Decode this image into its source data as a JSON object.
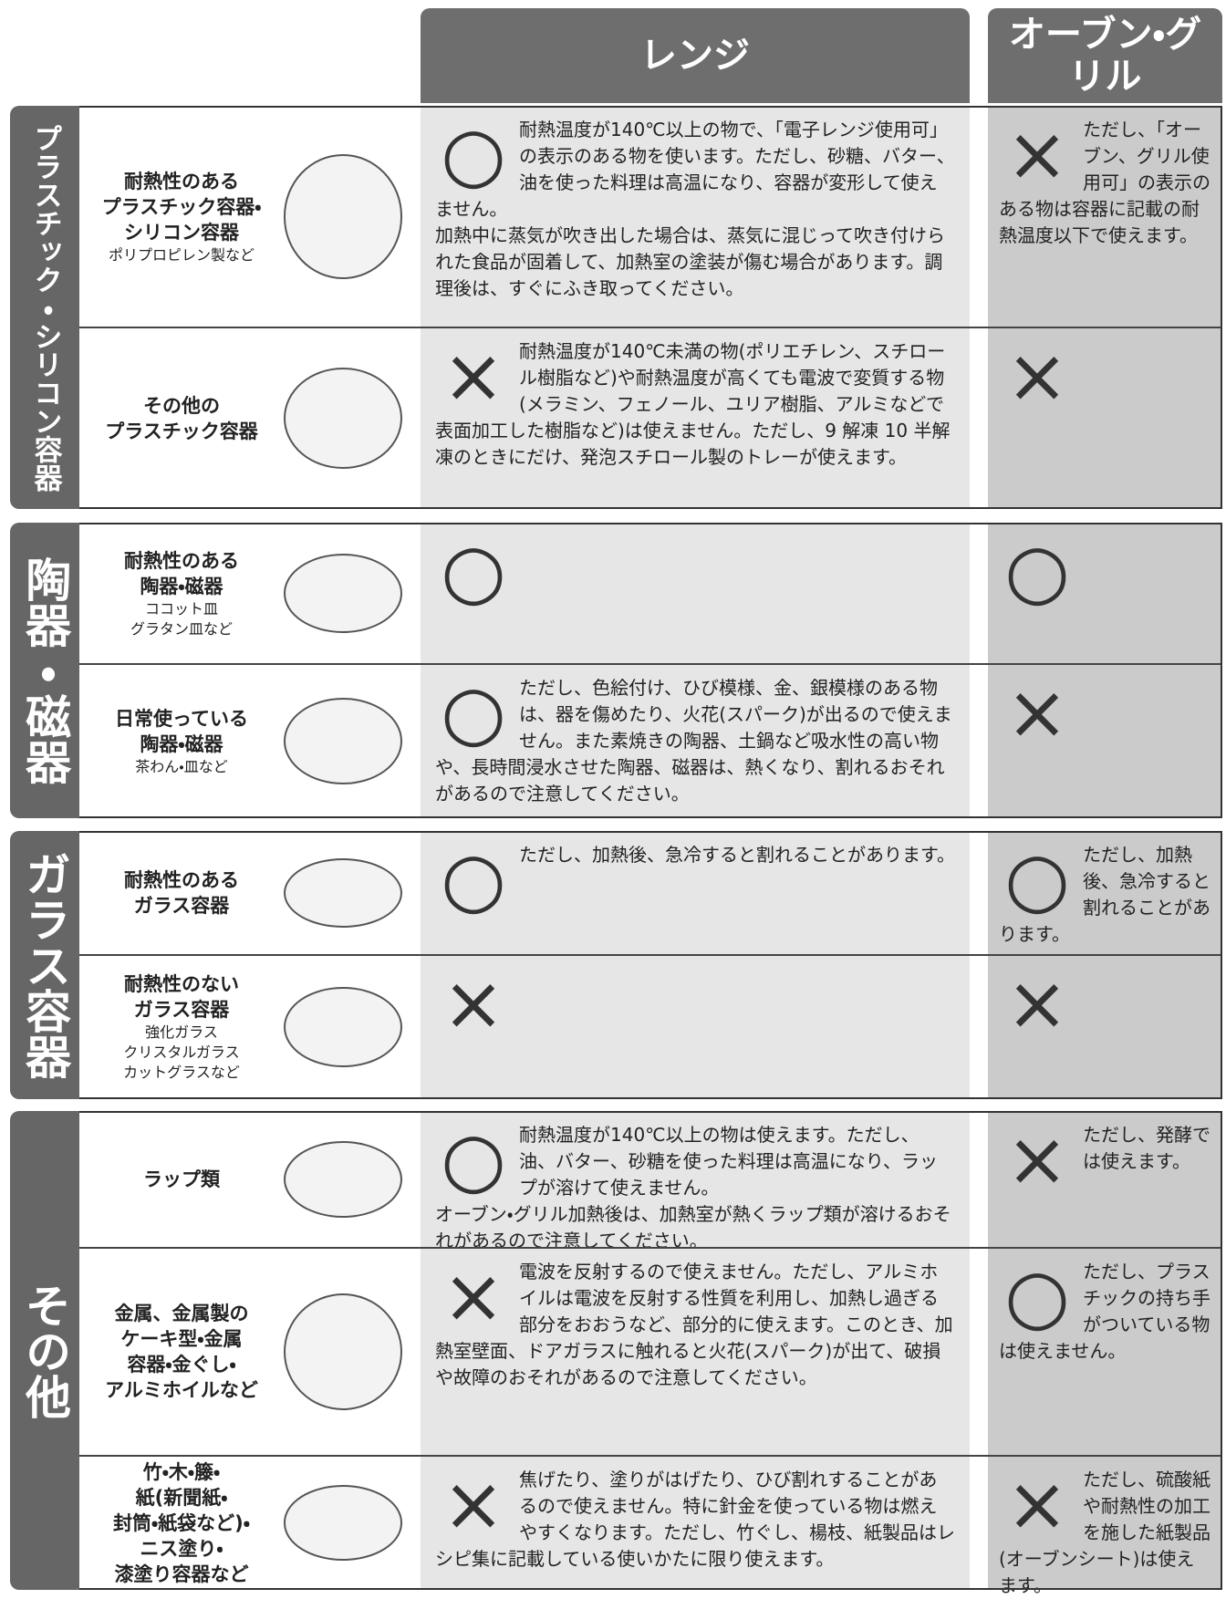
{
  "header": {
    "range": "レンジ",
    "oven": "オーブン・グリル"
  },
  "sections": [
    {
      "label": "プラスチック・シリコン容器",
      "rows": [
        {
          "item": [
            "耐熱性のある",
            "プラスチック容器・",
            "シリコン容器"
          ],
          "note": [
            "ポリプロピレン製など"
          ],
          "range": {
            "mark": "○",
            "text": [
              "耐熱温度が140℃以上の物で、「電子レンジ使用可」の表示のある物を使います。ただし、砂糖、バター、油を使った料理は高温になり、容器が変形して使えません。",
              "加熱中に蒸気が吹き出した場合は、蒸気に混じって吹き付けられた食品が固着して、加熱室の塗装が傷む場合があります。調理後は、すぐにふき取ってください。"
            ]
          },
          "oven": {
            "mark": "×",
            "text": [
              "ただし、「オーブン、グリル使用可」の表示のある物は容器に記載の耐熱温度以下で使えます。"
            ]
          }
        },
        {
          "item": [
            "その他の",
            "プラスチック容器"
          ],
          "note": [],
          "range": {
            "mark": "×",
            "text": [
              "耐熱温度が140℃未満の物(ポリエチレン、スチロール樹脂など)や耐熱温度が高くても電波で変質する物(メラミン、フェノール、ユリア樹脂、アルミなどで表面加工した樹脂など)は使えません。ただし、9 解凍 10 半解凍のときにだけ、発泡スチロール製のトレーが使えます。"
            ]
          },
          "oven": {
            "mark": "×",
            "text": []
          }
        }
      ]
    },
    {
      "label": "陶器・磁器",
      "rows": [
        {
          "item": [
            "耐熱性のある",
            "陶器・磁器"
          ],
          "note": [
            "ココット皿",
            "グラタン皿など"
          ],
          "range": {
            "mark": "○",
            "text": []
          },
          "oven": {
            "mark": "○",
            "text": []
          }
        },
        {
          "item": [
            "日常使っている",
            "陶器・磁器"
          ],
          "note": [
            "茶わん・皿など"
          ],
          "range": {
            "mark": "○",
            "text": [
              "ただし、色絵付け、ひび模様、金、銀模様のある物は、器を傷めたり、火花(スパーク)が出るので使えません。また素焼きの陶器、土鍋など吸水性の高い物や、長時間浸水させた陶器、磁器は、熱くなり、割れるおそれがあるので注意してください。"
            ]
          },
          "oven": {
            "mark": "×",
            "text": []
          }
        }
      ]
    },
    {
      "label": "ガラス容器",
      "rows": [
        {
          "item": [
            "耐熱性のある",
            "ガラス容器"
          ],
          "note": [],
          "range": {
            "mark": "○",
            "text": [
              "ただし、加熱後、急冷すると割れることがあります。"
            ]
          },
          "oven": {
            "mark": "○",
            "text": [
              "ただし、加熱後、急冷すると割れることがあります。"
            ]
          }
        },
        {
          "item": [
            "耐熱性のない",
            "ガラス容器"
          ],
          "note": [
            "強化ガラス",
            "クリスタルガラス",
            "カットグラスなど"
          ],
          "range": {
            "mark": "×",
            "text": []
          },
          "oven": {
            "mark": "×",
            "text": []
          }
        }
      ]
    },
    {
      "label": "その他",
      "rows": [
        {
          "item": [
            "ラップ類"
          ],
          "note": [],
          "range": {
            "mark": "○",
            "text": [
              "耐熱温度が140℃以上の物は使えます。ただし、油、バター、砂糖を使った料理は高温になり、ラップが溶けて使えません。",
              "オーブン・グリル加熱後は、加熱室が熱くラップ類が溶けるおそれがあるので注意してください。"
            ]
          },
          "oven": {
            "mark": "×",
            "text": [
              "ただし、発酵では使えます。"
            ]
          }
        },
        {
          "item": [
            "金属、金属製の",
            "ケーキ型・金属",
            "容器・金ぐし・",
            "アルミホイルなど"
          ],
          "note": [],
          "range": {
            "mark": "×",
            "text": [
              "電波を反射するので使えません。ただし、アルミホイルは電波を反射する性質を利用し、加熱し過ぎる部分をおおうなど、部分的に使えます。このとき、加熱室壁面、ドアガラスに触れると火花(スパーク)が出て、破損や故障のおそれがあるので注意してください。"
            ]
          },
          "oven": {
            "mark": "○",
            "text": [
              "ただし、プラスチックの持ち手がついている物は使えません。"
            ]
          }
        },
        {
          "item": [
            "竹・木・籐・",
            "紙(新聞紙・",
            "封筒・紙袋など)・",
            "ニス塗り・",
            "漆塗り容器など"
          ],
          "note": [],
          "range": {
            "mark": "×",
            "text": [
              "焦げたり、塗りがはげたり、ひび割れすることがあるので使えません。特に針金を使っている物は燃えやすくなります。ただし、竹ぐし、楊枝、紙製品はレシピ集に記載している使いかたに限り使えます。"
            ]
          },
          "oven": {
            "mark": "×",
            "text": [
              "ただし、硫酸紙や耐熱性の加工を施した紙製品(オーブンシート)は使えます。"
            ]
          }
        }
      ]
    }
  ]
}
